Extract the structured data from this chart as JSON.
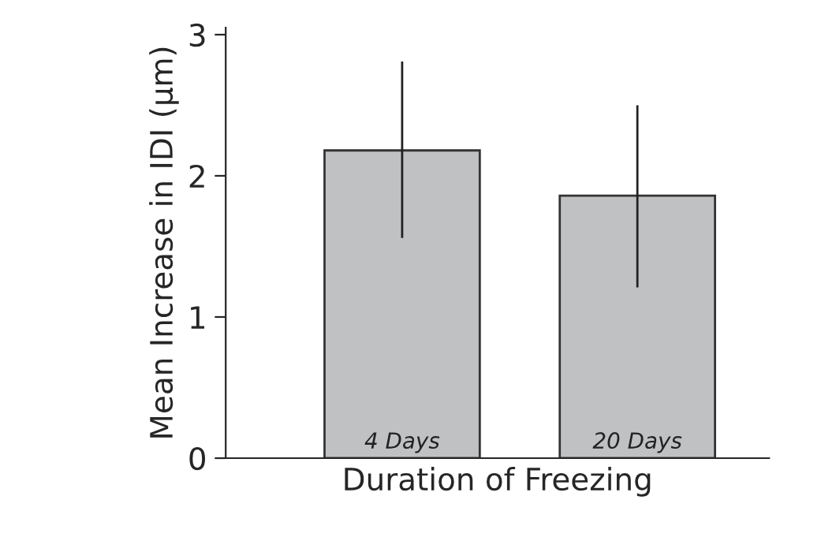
{
  "chart_data": {
    "type": "bar",
    "xlabel": "Duration of Freezing",
    "ylabel": "Mean Increase in IDI (μm)",
    "categories": [
      "4 Days",
      "20 Days"
    ],
    "values": [
      2.18,
      1.86
    ],
    "errors": [
      [
        1.56,
        2.81
      ],
      [
        1.21,
        2.5
      ]
    ],
    "color": "#c0c1c3",
    "ylim": [
      0,
      3.05
    ],
    "yticks": [
      0,
      1,
      2,
      3
    ],
    "grid": false,
    "legend": false
  }
}
